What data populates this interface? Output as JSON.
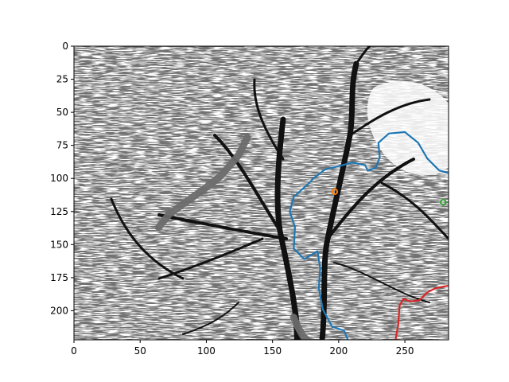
{
  "chart_data": {
    "type": "image",
    "image_extent": {
      "x": [
        0,
        283
      ],
      "y": [
        0,
        222
      ]
    },
    "x_axis": {
      "range": [
        0,
        283
      ],
      "ticks": [
        0,
        50,
        100,
        150,
        200,
        250
      ],
      "tick_labels": [
        "0",
        "50",
        "100",
        "150",
        "200",
        "250"
      ]
    },
    "y_axis": {
      "range": [
        0,
        222
      ],
      "inverted": true,
      "ticks": [
        0,
        25,
        50,
        75,
        100,
        125,
        150,
        175,
        200
      ],
      "tick_labels": [
        "0",
        "25",
        "50",
        "75",
        "100",
        "125",
        "150",
        "175",
        "200"
      ]
    },
    "grid": false,
    "title": "",
    "xlabel": "",
    "ylabel": "",
    "background": "line-drawing sketch of a tree with dense foliage",
    "overlays": [
      {
        "kind": "thick-stroke",
        "color": "#6b6b6b",
        "points": [
          [
            131,
            69
          ],
          [
            124,
            83
          ],
          [
            111,
            98
          ],
          [
            97,
            109
          ],
          [
            83,
            119
          ],
          [
            72,
            127
          ],
          [
            64,
            137
          ]
        ]
      },
      {
        "kind": "thick-stroke",
        "color": "#6b6b6b",
        "points": [
          [
            166,
            205
          ],
          [
            169,
            212
          ],
          [
            173,
            219
          ],
          [
            176,
            222
          ]
        ]
      },
      {
        "kind": "line",
        "color": "#1f77b4",
        "points": [
          [
            207,
            222
          ],
          [
            204,
            215
          ],
          [
            195,
            212
          ],
          [
            188,
            199
          ],
          [
            185,
            183
          ],
          [
            186,
            168
          ],
          [
            184,
            155
          ],
          [
            174,
            161
          ],
          [
            166,
            153
          ],
          [
            167,
            137
          ],
          [
            163,
            125
          ],
          [
            166,
            114
          ],
          [
            176,
            105
          ],
          [
            182,
            99
          ],
          [
            190,
            93
          ],
          [
            199,
            91
          ],
          [
            210,
            88
          ],
          [
            220,
            90
          ],
          [
            222,
            94
          ],
          [
            228,
            92
          ],
          [
            231,
            84
          ],
          [
            230,
            73
          ],
          [
            238,
            66
          ],
          [
            250,
            65
          ],
          [
            260,
            73
          ],
          [
            267,
            85
          ],
          [
            276,
            94
          ],
          [
            283,
            96
          ]
        ]
      },
      {
        "kind": "line",
        "color": "#d62728",
        "points": [
          [
            243,
            222
          ],
          [
            245,
            210
          ],
          [
            246,
            196
          ],
          [
            249,
            191
          ],
          [
            254,
            193
          ],
          [
            261,
            192
          ],
          [
            267,
            186
          ],
          [
            273,
            183
          ],
          [
            278,
            182
          ],
          [
            283,
            181
          ]
        ]
      },
      {
        "kind": "marker",
        "color": "#ff7f0e",
        "points": [
          [
            197,
            110
          ]
        ]
      },
      {
        "kind": "marker",
        "color": "#2ca02c",
        "points": [
          [
            279,
            118
          ]
        ]
      }
    ]
  }
}
